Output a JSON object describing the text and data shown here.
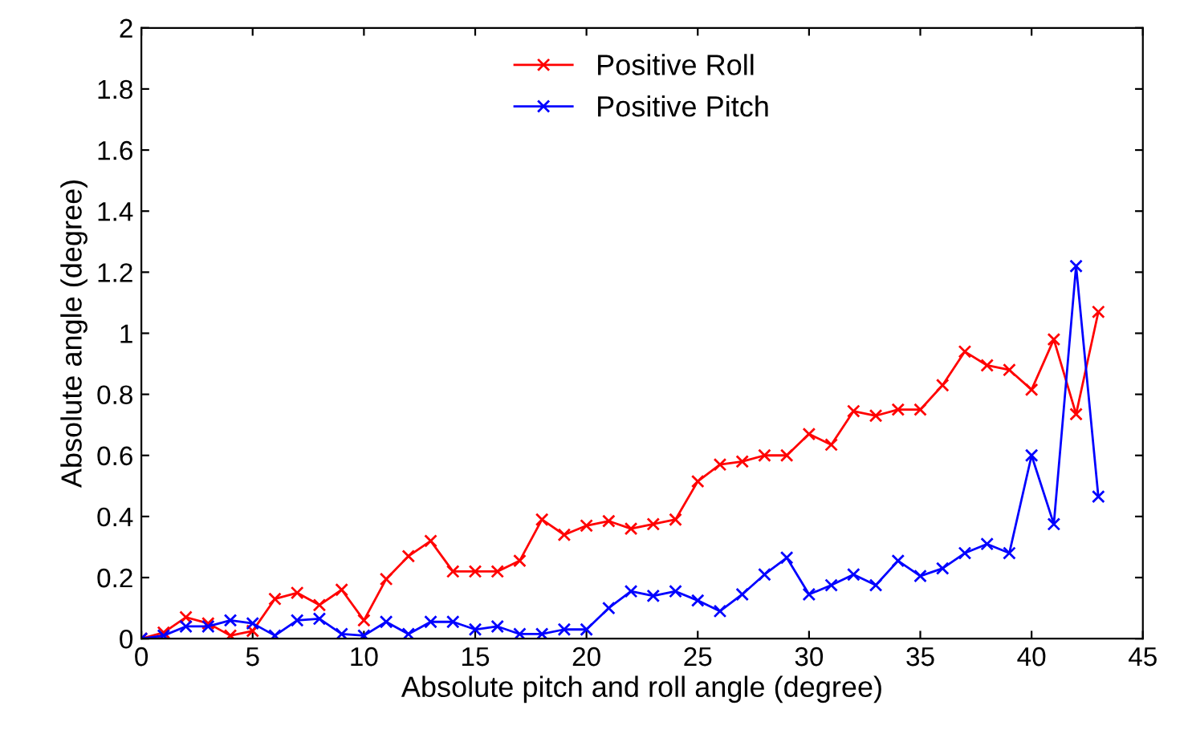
{
  "chart_data": {
    "type": "line",
    "xlabel": "Absolute pitch and roll angle (degree)",
    "ylabel": "Absolute angle (degree)",
    "x": [
      0,
      1,
      2,
      3,
      4,
      5,
      6,
      7,
      8,
      9,
      10,
      11,
      12,
      13,
      14,
      15,
      16,
      17,
      18,
      19,
      20,
      21,
      22,
      23,
      24,
      25,
      26,
      27,
      28,
      29,
      30,
      31,
      32,
      33,
      34,
      35,
      36,
      37,
      38,
      39,
      40,
      41,
      42,
      43
    ],
    "series": [
      {
        "name": "Positive Roll",
        "color": "#ff0000",
        "values": [
          0,
          0.02,
          0.07,
          0.05,
          0.01,
          0.025,
          0.13,
          0.15,
          0.11,
          0.16,
          0.06,
          0.195,
          0.27,
          0.32,
          0.22,
          0.22,
          0.22,
          0.255,
          0.39,
          0.34,
          0.37,
          0.385,
          0.36,
          0.375,
          0.39,
          0.515,
          0.57,
          0.58,
          0.6,
          0.6,
          0.67,
          0.635,
          0.745,
          0.73,
          0.75,
          0.75,
          0.83,
          0.94,
          0.895,
          0.88,
          0.815,
          0.98,
          0.735,
          1.07
        ]
      },
      {
        "name": "Positive Pitch",
        "color": "#0000ff",
        "values": [
          0,
          0.01,
          0.04,
          0.04,
          0.06,
          0.05,
          0.01,
          0.06,
          0.065,
          0.015,
          0.01,
          0.055,
          0.015,
          0.055,
          0.055,
          0.03,
          0.04,
          0.015,
          0.015,
          0.03,
          0.03,
          0.1,
          0.155,
          0.14,
          0.155,
          0.125,
          0.09,
          0.145,
          0.21,
          0.265,
          0.145,
          0.175,
          0.21,
          0.175,
          0.255,
          0.205,
          0.23,
          0.28,
          0.31,
          0.28,
          0.6,
          0.375,
          1.22,
          0.465
        ]
      }
    ],
    "xlim": [
      0,
      45
    ],
    "xticks": [
      0,
      5,
      10,
      15,
      20,
      25,
      30,
      35,
      40,
      45
    ],
    "ylim": [
      0,
      2
    ],
    "yticks": [
      0,
      0.2,
      0.4,
      0.6,
      0.8,
      1,
      1.2,
      1.4,
      1.6,
      1.8,
      2
    ],
    "marker": "cross",
    "line_style": "solid",
    "grid": false,
    "legend": "top"
  }
}
